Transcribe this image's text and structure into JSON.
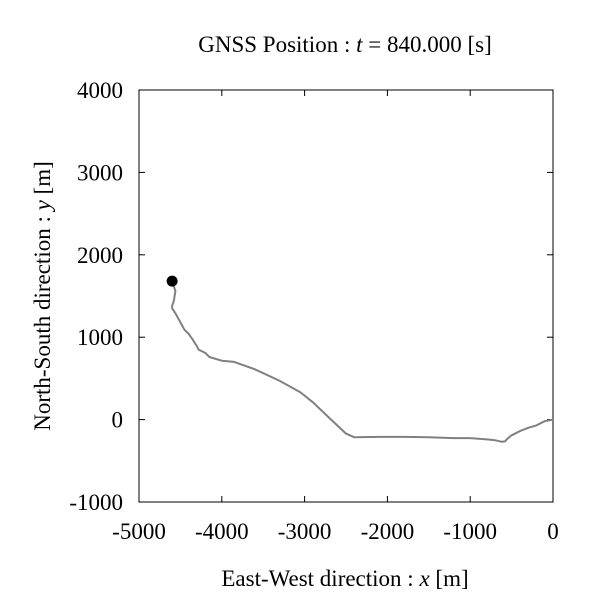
{
  "chart_data": {
    "type": "line",
    "title": {
      "prefix": "GNSS Position : ",
      "var": "t",
      "equals": " = ",
      "value": "840.000",
      "unit": " [s]"
    },
    "xlabel": {
      "text": "East-West direction : ",
      "var": "x",
      "unit": " [m]"
    },
    "ylabel": {
      "text": "North-South direction : ",
      "var": "y",
      "unit": " [m]"
    },
    "xlim": [
      -5000,
      0
    ],
    "ylim": [
      -1000,
      4000
    ],
    "xticks": [
      -5000,
      -4000,
      -3000,
      -2000,
      -1000,
      0
    ],
    "yticks": [
      -1000,
      0,
      1000,
      2000,
      3000,
      4000
    ],
    "xtick_labels": [
      "-5000",
      "-4000",
      "-3000",
      "-2000",
      "-1000",
      "0"
    ],
    "ytick_labels": [
      "-1000",
      "0",
      "1000",
      "2000",
      "3000",
      "4000"
    ],
    "grid": false,
    "colors": {
      "track": "#808080",
      "marker": "#000000",
      "frame": "#000000"
    },
    "series": [
      {
        "x": [
          0,
          -100,
          -200,
          -300,
          -400,
          -500,
          -550,
          -580,
          -620,
          -700,
          -800,
          -1000,
          -1200,
          -1500,
          -1800,
          -2100,
          -2400,
          -2500,
          -2700,
          -2900,
          -3050,
          -3300,
          -3600,
          -3850,
          -4000,
          -4150,
          -4200,
          -4280,
          -4300,
          -4320,
          -4350,
          -4400,
          -4450,
          -4500,
          -4560,
          -4580,
          -4600,
          -4600,
          -4580,
          -4560,
          -4600
        ],
        "y": [
          0,
          -20,
          -70,
          -100,
          -140,
          -190,
          -230,
          -265,
          -270,
          -250,
          -240,
          -225,
          -225,
          -215,
          -210,
          -210,
          -215,
          -170,
          20,
          210,
          330,
          470,
          610,
          700,
          715,
          760,
          810,
          850,
          890,
          920,
          970,
          1040,
          1090,
          1180,
          1290,
          1320,
          1350,
          1380,
          1440,
          1560,
          1680
        ]
      }
    ],
    "marker": {
      "x": -4600,
      "y": 1680
    }
  }
}
